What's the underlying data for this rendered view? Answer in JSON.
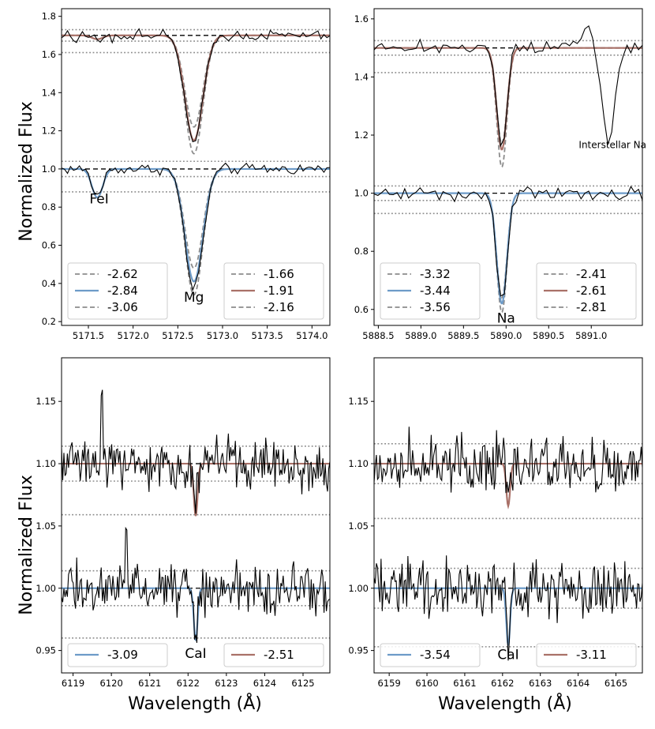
{
  "figure": {
    "ylabel": "Normalized Flux",
    "xlabel": "Wavelength (Å)",
    "colors": {
      "blue": "#6d9bc8",
      "red": "#a97168",
      "gray": "#8c8c8c",
      "spectrum": "#000000"
    }
  },
  "chart_data": [
    {
      "type": "line",
      "panel": "top-left",
      "xlim": [
        5171.2,
        5174.2
      ],
      "ylim": [
        0.18,
        1.84
      ],
      "xticks": [
        5171.5,
        5172.0,
        5172.5,
        5173.0,
        5173.5,
        5174.0
      ],
      "xtick_labels": [
        "5171.5",
        "5172.0",
        "5172.5",
        "5173.0",
        "5173.5",
        "5174.0"
      ],
      "yticks": [
        0.2,
        0.4,
        0.6,
        0.8,
        1.0,
        1.2,
        1.4,
        1.6,
        1.8
      ],
      "ytick_labels": [
        "0.2",
        "0.4",
        "0.6",
        "0.8",
        "1.0",
        "1.2",
        "1.4",
        "1.6",
        "1.8"
      ],
      "continuum": [
        1.0,
        1.7
      ],
      "dotted": [
        1.04,
        0.96,
        0.88,
        1.73,
        1.67,
        1.61
      ],
      "lines": [
        {
          "center": 5172.68,
          "width": 0.1,
          "depth_blue": [
            0.66,
            0.59,
            0.52
          ],
          "depth_red": [
            0.62,
            0.55,
            0.48
          ]
        },
        {
          "center": 5171.6,
          "width": 0.06,
          "depth_blue": [
            0.15,
            0.15,
            0.15
          ],
          "depth_red": [
            0.02,
            0.02,
            0.02
          ]
        }
      ],
      "spectrum": {
        "blue_offset": 0.0,
        "red_offset": 0.7,
        "noise": 0.02,
        "n": 90,
        "blue_line_depths": [
          0.63,
          0.14
        ],
        "red_line_depths": [
          0.57,
          0.02
        ]
      },
      "annotations": [
        {
          "text": "FeI",
          "x": 5171.62,
          "y": 0.82,
          "cls": "linelab"
        },
        {
          "text": "Mg",
          "x": 5172.68,
          "y": 0.305,
          "cls": "linelab"
        }
      ],
      "legend_blue": {
        "placement": "lower-left",
        "entries": [
          "-2.62",
          "-2.84",
          "-3.06"
        ]
      },
      "legend_red": {
        "placement": "lower-right",
        "entries": [
          "-1.66",
          "-1.91",
          "-2.16"
        ]
      }
    },
    {
      "type": "line",
      "panel": "top-right",
      "xlim": [
        5888.45,
        5891.6
      ],
      "ylim": [
        0.545,
        1.635
      ],
      "xticks": [
        5888.5,
        5889.0,
        5889.5,
        5890.0,
        5890.5,
        5891.0
      ],
      "xtick_labels": [
        "5888.5",
        "5889.0",
        "5889.5",
        "5890.0",
        "5890.5",
        "5891.0"
      ],
      "yticks": [
        0.6,
        0.8,
        1.0,
        1.2,
        1.4,
        1.6
      ],
      "ytick_labels": [
        "0.6",
        "0.8",
        "1.0",
        "1.2",
        "1.4",
        "1.6"
      ],
      "continuum": [
        1.0,
        1.5
      ],
      "dotted": [
        1.025,
        0.975,
        0.93,
        1.525,
        1.475,
        1.415
      ],
      "lines": [
        {
          "center": 5889.95,
          "width": 0.06,
          "depth_blue": [
            0.36,
            0.38,
            0.41
          ],
          "depth_red": [
            0.33,
            0.35,
            0.41
          ]
        }
      ],
      "interstellar": {
        "center": 5891.2,
        "width": 0.07,
        "depth": 0.33
      },
      "spectrum": {
        "blue_offset": 0.0,
        "red_offset": 0.5,
        "noise": 0.018,
        "n": 70,
        "blue_line_depths": [
          0.38
        ],
        "red_line_depths": [
          0.36
        ]
      },
      "annotations": [
        {
          "text": "Interstellar Na",
          "x": 5891.25,
          "y": 1.155,
          "cls": "smalllab"
        },
        {
          "text": "Na",
          "x": 5890.0,
          "y": 0.555,
          "cls": "linelab"
        }
      ],
      "legend_blue": {
        "placement": "lower-left",
        "entries": [
          "-3.32",
          "-3.44",
          "-3.56"
        ]
      },
      "legend_red": {
        "placement": "lower-right",
        "entries": [
          "-2.41",
          "-2.61",
          "-2.81"
        ]
      }
    },
    {
      "type": "line",
      "panel": "bottom-left",
      "xlim": [
        6118.7,
        6125.7
      ],
      "ylim": [
        0.932,
        1.185
      ],
      "xticks": [
        6119,
        6120,
        6121,
        6122,
        6123,
        6124,
        6125
      ],
      "xtick_labels": [
        "6119",
        "6120",
        "6121",
        "6122",
        "6123",
        "6124",
        "6125"
      ],
      "yticks": [
        0.95,
        1.0,
        1.05,
        1.1,
        1.15
      ],
      "ytick_labels": [
        "0.95",
        "1.00",
        "1.05",
        "1.10",
        "1.15"
      ],
      "continuum": [
        1.0,
        1.1
      ],
      "dotted": [
        1.014,
        0.986,
        0.96,
        1.114,
        1.086,
        1.059
      ],
      "lines": [
        {
          "center": 6122.2,
          "width": 0.05,
          "depth_blue": [
            0.042
          ],
          "depth_red": [
            0.042
          ]
        }
      ],
      "spectrum": {
        "blue_offset": 0.0,
        "red_offset": 0.1,
        "noise": 0.014,
        "n": 230,
        "blue_line_depths": [
          0.035
        ],
        "red_line_depths": [
          0.03
        ],
        "spikes": [
          [
            6119.75,
            0.06,
            1
          ],
          [
            6120.4,
            0.045,
            0
          ]
        ]
      },
      "annotations": [
        {
          "text": "CaI",
          "x": 6122.2,
          "y": 0.944,
          "cls": "linelab"
        }
      ],
      "legend_blue": {
        "placement": "lower-left",
        "entries": [
          "-3.09"
        ]
      },
      "legend_red": {
        "placement": "lower-right",
        "entries": [
          "-2.51"
        ]
      }
    },
    {
      "type": "line",
      "panel": "bottom-right",
      "xlim": [
        6158.6,
        6165.7
      ],
      "ylim": [
        0.932,
        1.185
      ],
      "xticks": [
        6159,
        6160,
        6161,
        6162,
        6163,
        6164,
        6165
      ],
      "xtick_labels": [
        "6159",
        "6160",
        "6161",
        "6162",
        "6163",
        "6164",
        "6165"
      ],
      "yticks": [
        0.95,
        1.0,
        1.05,
        1.1,
        1.15
      ],
      "ytick_labels": [
        "0.95",
        "1.00",
        "1.05",
        "1.10",
        "1.15"
      ],
      "continuum": [
        1.0,
        1.1
      ],
      "dotted": [
        1.016,
        0.984,
        0.953,
        1.116,
        1.084,
        1.056
      ],
      "lines": [
        {
          "center": 6162.15,
          "width": 0.05,
          "depth_blue": [
            0.046
          ],
          "depth_red": [
            0.034
          ]
        }
      ],
      "spectrum": {
        "blue_offset": 0.0,
        "red_offset": 0.1,
        "noise": 0.016,
        "n": 230,
        "blue_line_depths": [
          0.04
        ],
        "red_line_depths": [
          0.03
        ],
        "spikes": []
      },
      "annotations": [
        {
          "text": "CaI",
          "x": 6162.15,
          "y": 0.943,
          "cls": "linelab"
        }
      ],
      "legend_blue": {
        "placement": "lower-left",
        "entries": [
          "-3.54"
        ]
      },
      "legend_red": {
        "placement": "lower-right",
        "entries": [
          "-3.11"
        ]
      }
    }
  ]
}
